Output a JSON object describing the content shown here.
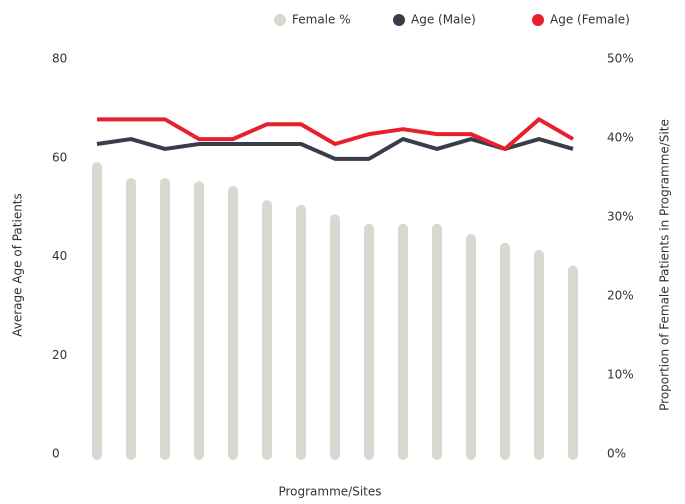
{
  "chart_data": {
    "type": "bar_line",
    "x_label": "Programme/Sites",
    "y_label": "Average Age of Patients",
    "y2_label": "Proportion of Female Patients in Programme/Site",
    "categories": [
      null,
      null,
      null,
      null,
      null,
      null,
      null,
      null,
      null,
      null,
      null,
      null,
      null,
      null,
      null
    ],
    "series": [
      {
        "name": "Female %",
        "type": "bar",
        "axis": "y2",
        "color": "#d9d9d1",
        "values": [
          37.7,
          35.7,
          35.7,
          35.3,
          34.7,
          32.9,
          32.3,
          31.1,
          29.9,
          29.9,
          29.9,
          28.6,
          27.5,
          26.6,
          24.6
        ]
      },
      {
        "name": "Age (Male)",
        "type": "line",
        "color": "#373d49",
        "values": [
          64,
          65,
          63,
          64,
          64,
          64,
          64,
          61,
          61,
          65,
          63,
          65,
          63,
          65,
          63
        ]
      },
      {
        "name": "Age (Female)",
        "type": "line",
        "color": "#e8202e",
        "values": [
          69,
          69,
          69,
          65,
          65,
          68,
          68,
          64,
          66,
          67,
          66,
          66,
          63,
          69,
          65
        ]
      }
    ],
    "ylim": [
      0,
      80
    ],
    "yticks": [
      0,
      20,
      40,
      60,
      80
    ],
    "y2lim": [
      0,
      50
    ],
    "y2ticks": [
      {
        "value": 0,
        "label": "0%"
      },
      {
        "value": 10,
        "label": "10%"
      },
      {
        "value": 20,
        "label": "20%"
      },
      {
        "value": 30,
        "label": "30%"
      },
      {
        "value": 40,
        "label": "40%"
      },
      {
        "value": 50,
        "label": "50%"
      }
    ],
    "legend": "top"
  }
}
